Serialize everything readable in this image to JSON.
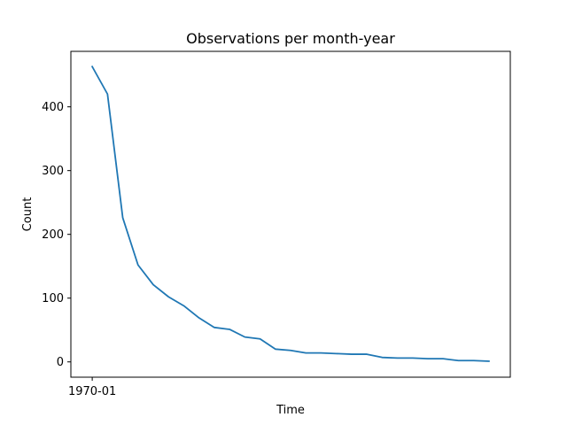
{
  "chart_data": {
    "type": "line",
    "title": "Observations per month-year",
    "xlabel": "Time",
    "ylabel": "Count",
    "x_tick_labels": [
      "1970-01"
    ],
    "y_ticks": [
      0,
      100,
      200,
      300,
      400
    ],
    "ylim": [
      -24,
      487
    ],
    "xlim": [
      -1.4,
      27.4
    ],
    "grid": false,
    "series": [
      {
        "color": "#1f77b4",
        "values": [
          463,
          420,
          226,
          152,
          121,
          102,
          88,
          69,
          54,
          51,
          39,
          36,
          20,
          18,
          14,
          14,
          13,
          12,
          12,
          7,
          6,
          6,
          5,
          5,
          2,
          2,
          1
        ]
      }
    ]
  }
}
